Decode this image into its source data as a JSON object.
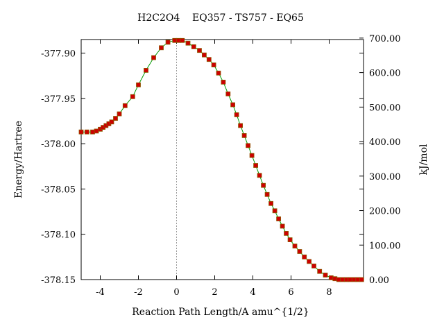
{
  "chart_data": {
    "type": "line",
    "title": "H2C2O4    EQ357 - TS757 - EQ65",
    "xlabel": "Reaction Path Length/A amu^{1/2}",
    "ylabel": "Energy/Hartree",
    "y2label": "kJ/mol",
    "xlim": [
      -5,
      9.8
    ],
    "ylim": [
      -378.15,
      -377.885
    ],
    "xticks": [
      -4,
      -2,
      0,
      2,
      4,
      6,
      8
    ],
    "yticks": [
      -377.9,
      -377.95,
      -378.0,
      -378.05,
      -378.1,
      -378.15
    ],
    "ytick_labels": [
      "-377.90",
      "-377.95",
      "-378.00",
      "-378.05",
      "-378.10",
      "-378.15"
    ],
    "y2ticks": [
      "0.00",
      "100.00",
      "200.00",
      "300.00",
      "400.00",
      "500.00",
      "600.00",
      "700.00"
    ],
    "y2_per_hartree": 2625.5,
    "ts_marker_x": 0,
    "grid": false,
    "line_color": "#009900",
    "marker_color": "#cc0000",
    "marker_edge_color": "#8b5a00",
    "series": [
      {
        "x": [
          -5.0,
          -4.7,
          -4.4,
          -4.2,
          -4.0,
          -3.85,
          -3.7,
          -3.55,
          -3.4,
          -3.2,
          -3.0,
          -2.7,
          -2.3,
          -2.0,
          -1.6,
          -1.2,
          -0.8,
          -0.45,
          -0.1,
          0.1,
          0.3,
          0.6,
          0.9,
          1.2,
          1.45,
          1.7,
          1.95,
          2.2,
          2.45,
          2.7,
          2.95,
          3.15,
          3.35,
          3.55,
          3.75,
          3.95,
          4.15,
          4.35,
          4.55,
          4.75,
          4.95,
          5.15,
          5.35,
          5.55,
          5.75,
          5.95,
          6.2,
          6.45,
          6.7,
          6.95,
          7.2,
          7.5,
          7.8,
          8.1,
          8.3,
          8.5,
          8.7,
          8.9,
          9.1,
          9.3,
          9.5,
          9.7
        ],
        "y": [
          -377.987,
          -377.987,
          -377.987,
          -377.986,
          -377.984,
          -377.982,
          -377.98,
          -377.978,
          -377.976,
          -377.972,
          -377.967,
          -377.958,
          -377.948,
          -377.935,
          -377.919,
          -377.905,
          -377.894,
          -377.888,
          -377.886,
          -377.886,
          -377.886,
          -377.889,
          -377.893,
          -377.897,
          -377.902,
          -377.907,
          -377.913,
          -377.922,
          -377.932,
          -377.945,
          -377.957,
          -377.968,
          -377.98,
          -377.991,
          -378.002,
          -378.013,
          -378.024,
          -378.035,
          -378.046,
          -378.056,
          -378.066,
          -378.074,
          -378.083,
          -378.091,
          -378.099,
          -378.106,
          -378.113,
          -378.119,
          -378.125,
          -378.13,
          -378.135,
          -378.141,
          -378.145,
          -378.148,
          -378.149,
          -378.15,
          -378.15,
          -378.15,
          -378.15,
          -378.15,
          -378.15,
          -378.15
        ]
      }
    ]
  }
}
